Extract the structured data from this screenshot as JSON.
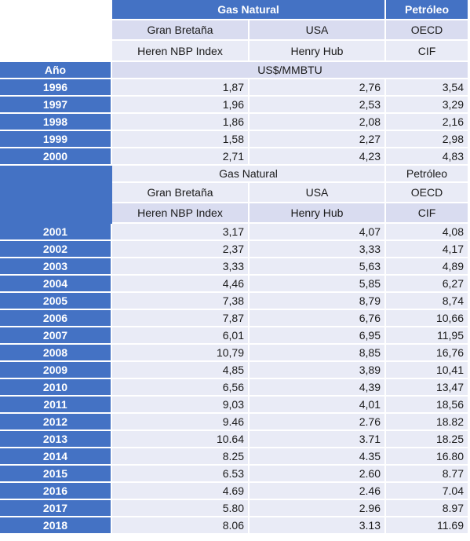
{
  "header1": {
    "gas_natural": "Gas Natural",
    "petroleo": "Petróleo",
    "gran_bretana": "Gran Bretaña",
    "usa": "USA",
    "oecd": "OECD",
    "heren": "Heren NBP Index",
    "henry": "Henry Hub",
    "cif": "CIF",
    "anio": "Año",
    "unit": "US$/MMBTU"
  },
  "header2": {
    "gas_natural": "Gas Natural",
    "petroleo": "Petróleo",
    "gran_bretana": "Gran Bretaña",
    "usa": "USA",
    "oecd": "OECD",
    "heren": "Heren NBP Index",
    "henry": "Henry Hub",
    "cif": "CIF"
  },
  "rows1": [
    {
      "year": "1996",
      "gb": "1,87",
      "usa": "2,76",
      "oecd": "3,54"
    },
    {
      "year": "1997",
      "gb": "1,96",
      "usa": "2,53",
      "oecd": "3,29"
    },
    {
      "year": "1998",
      "gb": "1,86",
      "usa": "2,08",
      "oecd": "2,16"
    },
    {
      "year": "1999",
      "gb": "1,58",
      "usa": "2,27",
      "oecd": "2,98"
    },
    {
      "year": "2000",
      "gb": "2,71",
      "usa": "4,23",
      "oecd": "4,83"
    }
  ],
  "rows2": [
    {
      "year": "2001",
      "gb": "3,17",
      "usa": "4,07",
      "oecd": "4,08"
    },
    {
      "year": "2002",
      "gb": "2,37",
      "usa": "3,33",
      "oecd": "4,17"
    },
    {
      "year": "2003",
      "gb": "3,33",
      "usa": "5,63",
      "oecd": "4,89"
    },
    {
      "year": "2004",
      "gb": "4,46",
      "usa": "5,85",
      "oecd": "6,27"
    },
    {
      "year": "2005",
      "gb": "7,38",
      "usa": "8,79",
      "oecd": "8,74"
    },
    {
      "year": "2006",
      "gb": "7,87",
      "usa": "6,76",
      "oecd": "10,66"
    },
    {
      "year": "2007",
      "gb": "6,01",
      "usa": "6,95",
      "oecd": "11,95"
    },
    {
      "year": "2008",
      "gb": "10,79",
      "usa": "8,85",
      "oecd": "16,76"
    },
    {
      "year": "2009",
      "gb": "4,85",
      "usa": "3,89",
      "oecd": "10,41"
    },
    {
      "year": "2010",
      "gb": "6,56",
      "usa": "4,39",
      "oecd": "13,47"
    },
    {
      "year": "2011",
      "gb": "9,03",
      "usa": "4,01",
      "oecd": "18,56"
    },
    {
      "year": "2012",
      "gb": "9.46",
      "usa": "2.76",
      "oecd": "18.82"
    },
    {
      "year": "2013",
      "gb": "10.64",
      "usa": "3.71",
      "oecd": "18.25"
    },
    {
      "year": "2014",
      "gb": "8.25",
      "usa": "4.35",
      "oecd": "16.80"
    },
    {
      "year": "2015",
      "gb": "6.53",
      "usa": "2.60",
      "oecd": "8.77"
    },
    {
      "year": "2016",
      "gb": "4.69",
      "usa": "2.46",
      "oecd": "7.04"
    },
    {
      "year": "2017",
      "gb": "5.80",
      "usa": "2.96",
      "oecd": "8.97"
    },
    {
      "year": "2018",
      "gb": "8.06",
      "usa": "3.13",
      "oecd": "11.69"
    }
  ]
}
